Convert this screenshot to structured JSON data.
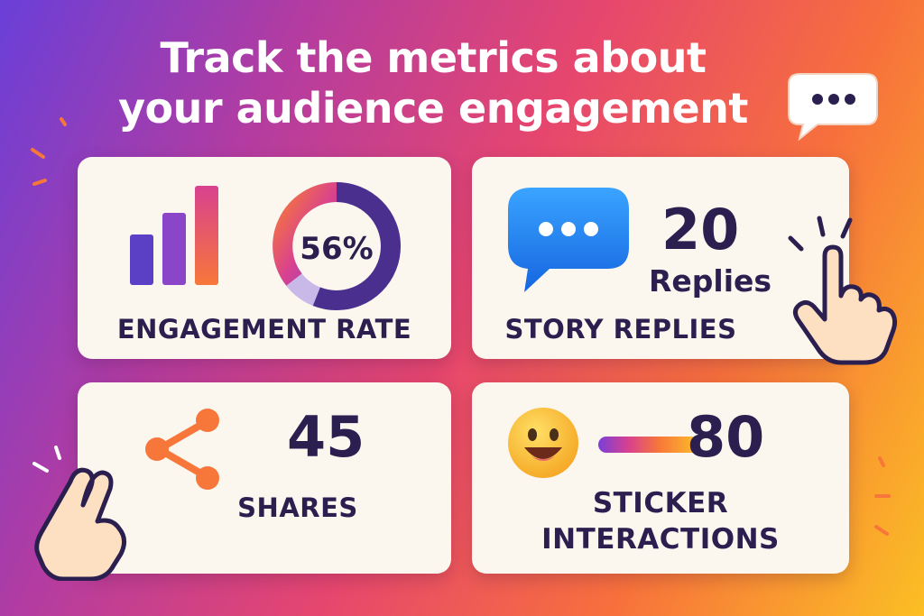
{
  "headline": {
    "line1": "Track the metrics about",
    "line2": "your audience engagement"
  },
  "cards": {
    "engagement": {
      "percent_label": "56%",
      "percent_value": 56,
      "label": "ENGAGEMENT RATE"
    },
    "story": {
      "count": "20",
      "unit": "Replies",
      "label": "STORY REPLIES"
    },
    "shares": {
      "count": "45",
      "label": "SHARES"
    },
    "sticker": {
      "count": "80",
      "label_line1": "STICKER",
      "label_line2": "INTERACTIONS"
    }
  },
  "colors": {
    "card_bg": "#fbf6ee",
    "text_dark": "#2a1f4f",
    "accent_purple": "#5b3fc4",
    "accent_pink": "#d8418f",
    "accent_orange": "#f7773a",
    "chat_blue": "#1e88f5",
    "emoji_yellow": "#fcc02a"
  },
  "icons": [
    "chat-bubble-icon",
    "bar-chart-icon",
    "donut-chart-icon",
    "message-icon",
    "pointing-hand-icon",
    "share-icon",
    "two-finger-hand-icon",
    "smiley-emoji-icon",
    "slider-icon"
  ]
}
